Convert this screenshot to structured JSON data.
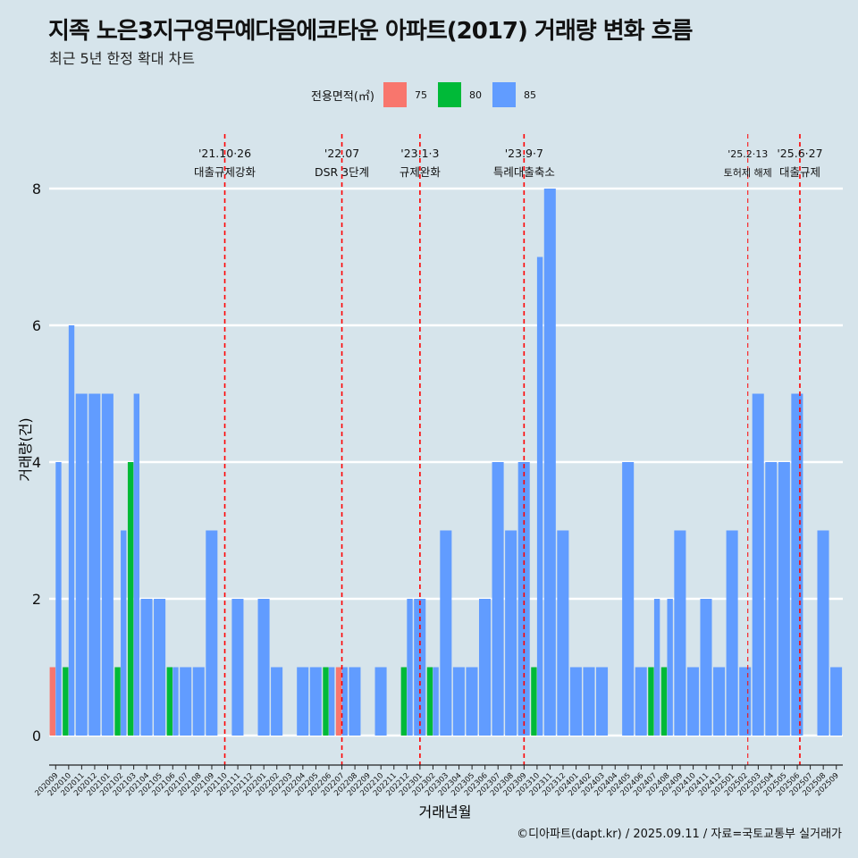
{
  "title": "지족 노은3지구영무예다음에코타운 아파트(2017) 거래량 변화 흐름",
  "subtitle": "최근 5년 한정 확대 차트",
  "caption": "©디아파트(dapt.kr) / 2025.09.11 / 자료=국토교통부 실거래가",
  "legend": {
    "title": "전용면적(㎡)",
    "items": [
      {
        "label": "75",
        "color": "#f8766d"
      },
      {
        "label": "80",
        "color": "#00ba38"
      },
      {
        "label": "85",
        "color": "#619cff"
      }
    ]
  },
  "chart_data": {
    "type": "bar",
    "stacking": "dodge",
    "xlabel": "거래년월",
    "ylabel": "거래량(건)",
    "ylim": [
      0,
      8
    ],
    "yticks": [
      0,
      2,
      4,
      6,
      8
    ],
    "grid": true,
    "legend_position": "top",
    "categories": [
      "202009",
      "202010",
      "202011",
      "202012",
      "202101",
      "202102",
      "202103",
      "202104",
      "202105",
      "202106",
      "202107",
      "202108",
      "202109",
      "202110",
      "202111",
      "202112",
      "202201",
      "202202",
      "202203",
      "202204",
      "202205",
      "202206",
      "202207",
      "202208",
      "202209",
      "202210",
      "202211",
      "202212",
      "202301",
      "202302",
      "202303",
      "202304",
      "202305",
      "202306",
      "202307",
      "202308",
      "202309",
      "202310",
      "202311",
      "202312",
      "202401",
      "202402",
      "202403",
      "202404",
      "202405",
      "202406",
      "202407",
      "202408",
      "202409",
      "202410",
      "202411",
      "202412",
      "202501",
      "202502",
      "202503",
      "202504",
      "202505",
      "202506",
      "202507",
      "202508",
      "202509"
    ],
    "series": [
      {
        "name": "75",
        "color": "#f8766d",
        "values": [
          1,
          0,
          0,
          0,
          0,
          0,
          0,
          0,
          0,
          0,
          0,
          0,
          0,
          0,
          0,
          0,
          0,
          0,
          0,
          0,
          0,
          0,
          1,
          0,
          0,
          0,
          0,
          0,
          0,
          0,
          0,
          0,
          0,
          0,
          0,
          0,
          0,
          0,
          0,
          0,
          0,
          0,
          0,
          0,
          0,
          0,
          0,
          0,
          0,
          0,
          0,
          0,
          0,
          0,
          0,
          0,
          0,
          0,
          0,
          0,
          0
        ]
      },
      {
        "name": "80",
        "color": "#00ba38",
        "values": [
          0,
          1,
          0,
          0,
          0,
          1,
          4,
          0,
          0,
          1,
          0,
          0,
          0,
          0,
          0,
          0,
          0,
          0,
          0,
          0,
          0,
          1,
          0,
          0,
          0,
          0,
          0,
          1,
          0,
          1,
          0,
          0,
          0,
          0,
          0,
          0,
          0,
          1,
          0,
          0,
          0,
          0,
          0,
          0,
          0,
          0,
          1,
          1,
          0,
          0,
          0,
          0,
          0,
          0,
          0,
          0,
          0,
          0,
          0,
          0,
          0
        ]
      },
      {
        "name": "85",
        "color": "#619cff",
        "values": [
          4,
          6,
          5,
          5,
          5,
          3,
          5,
          2,
          2,
          1,
          1,
          1,
          3,
          0,
          2,
          0,
          2,
          1,
          0,
          1,
          1,
          1,
          1,
          1,
          0,
          1,
          0,
          2,
          2,
          1,
          3,
          1,
          1,
          2,
          4,
          3,
          4,
          7,
          8,
          3,
          1,
          1,
          1,
          0,
          4,
          1,
          2,
          2,
          3,
          1,
          2,
          1,
          3,
          1,
          5,
          4,
          4,
          5,
          0,
          3,
          1
        ]
      }
    ],
    "events": [
      {
        "index": 13,
        "date": "'21.10·26",
        "label": "대출규제강화"
      },
      {
        "index": 22,
        "date": "'22.07",
        "label": "DSR 3단계"
      },
      {
        "index": 28,
        "date": "'23.1·3",
        "label": "규제완화"
      },
      {
        "index": 36,
        "date": "'23.9·7",
        "label": "특례대출축소"
      },
      {
        "index": 53.2,
        "date": "'25.2·13",
        "label": "토허제 해제"
      },
      {
        "index": 57.2,
        "date": "'25.6·27",
        "label": "대출규제"
      }
    ]
  }
}
